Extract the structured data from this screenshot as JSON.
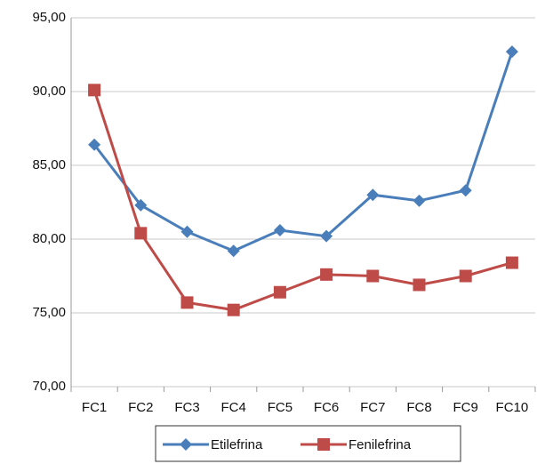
{
  "chart_data": {
    "type": "line",
    "categories": [
      "FC1",
      "FC2",
      "FC3",
      "FC4",
      "FC5",
      "FC6",
      "FC7",
      "FC8",
      "FC9",
      "FC10"
    ],
    "series": [
      {
        "name": "Etilefrina",
        "color": "#4a7ebb",
        "marker": "diamond",
        "values": [
          86.4,
          82.3,
          80.5,
          79.2,
          80.6,
          80.2,
          83.0,
          82.6,
          83.3,
          92.7
        ]
      },
      {
        "name": "Fenilefrina",
        "color": "#be4b48",
        "marker": "square",
        "values": [
          90.1,
          80.4,
          75.7,
          75.2,
          76.4,
          77.6,
          77.5,
          76.9,
          77.5,
          78.4
        ]
      }
    ],
    "ylim": [
      70,
      95
    ],
    "yticks": [
      {
        "value": 70,
        "label": "70,00"
      },
      {
        "value": 75,
        "label": "75,00"
      },
      {
        "value": 80,
        "label": "80,00"
      },
      {
        "value": 85,
        "label": "85,00"
      },
      {
        "value": 90,
        "label": "90,00"
      },
      {
        "value": 95,
        "label": "95,00"
      }
    ],
    "grid": true,
    "legend": "bottom"
  }
}
